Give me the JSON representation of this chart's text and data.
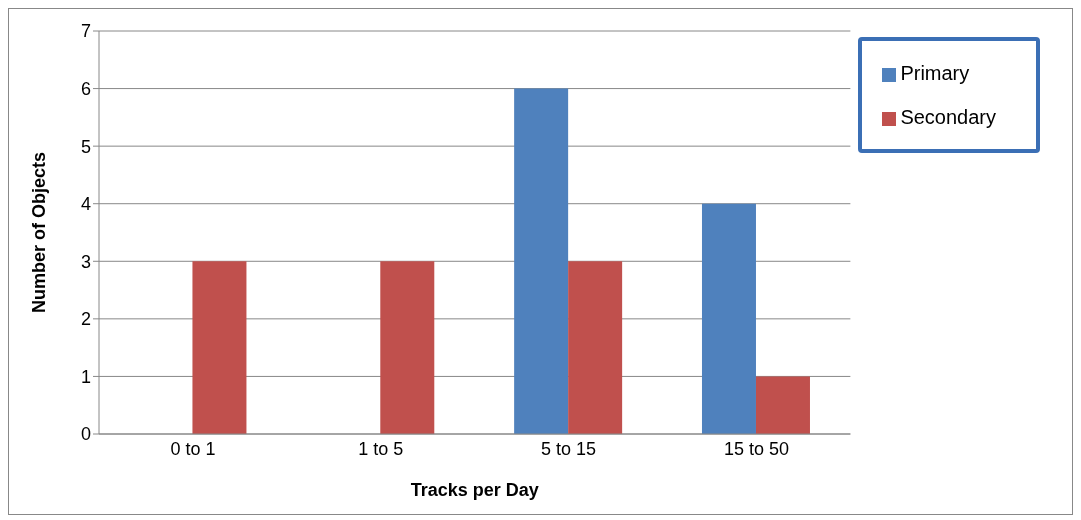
{
  "chart_data": {
    "type": "bar",
    "xlabel": "Tracks per Day",
    "ylabel": "Number of Objects",
    "categories": [
      "0 to 1",
      "1 to 5",
      "5 to 15",
      "15 to 50"
    ],
    "series": [
      {
        "name": "Primary",
        "color": "#4f81bd",
        "values": [
          0,
          0,
          6,
          4
        ]
      },
      {
        "name": "Secondary",
        "color": "#c0504d",
        "values": [
          3,
          3,
          3,
          1
        ]
      }
    ],
    "ylim": [
      0,
      7
    ],
    "yticks": [
      0,
      1,
      2,
      3,
      4,
      5,
      6,
      7
    ],
    "grid": "y",
    "legend": "top right"
  }
}
